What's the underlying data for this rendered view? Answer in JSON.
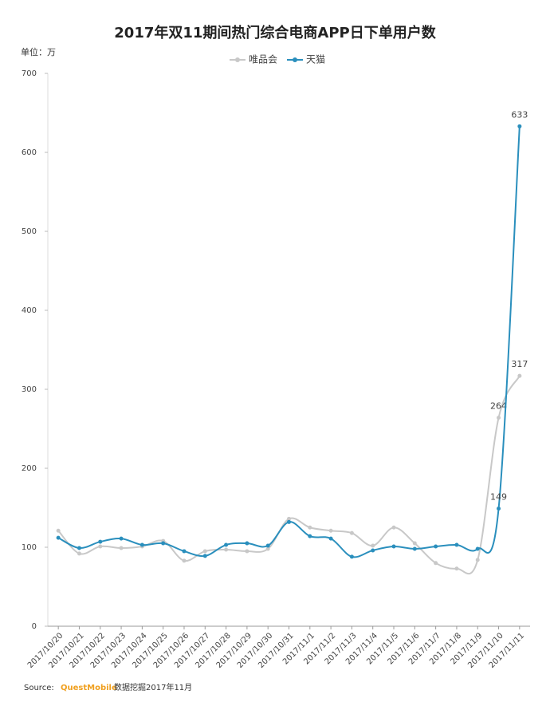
{
  "chart_data": {
    "type": "line",
    "title": "2017年双11期间热门综合电商APP日下单用户数",
    "y_unit": "单位：万",
    "categories": [
      "2017/10/20",
      "2017/10/21",
      "2017/10/22",
      "2017/10/23",
      "2017/10/24",
      "2017/10/25",
      "2017/10/26",
      "2017/10/27",
      "2017/10/28",
      "2017/10/29",
      "2017/10/30",
      "2017/10/31",
      "2017/11/1",
      "2017/11/2",
      "2017/11/3",
      "2017/11/4",
      "2017/11/5",
      "2017/11/6",
      "2017/11/7",
      "2017/11/8",
      "2017/11/9",
      "2017/11/10",
      "2017/11/11"
    ],
    "series": [
      {
        "name": "唯品会",
        "color": "#c8c8c8",
        "values": [
          121,
          92,
          101,
          99,
          101,
          108,
          83,
          95,
          97,
          95,
          98,
          136,
          125,
          121,
          118,
          102,
          125,
          105,
          80,
          73,
          84,
          264,
          317
        ],
        "data_labels": [
          21,
          22
        ]
      },
      {
        "name": "天猫",
        "color": "#2a8fbd",
        "values": [
          112,
          99,
          107,
          111,
          103,
          105,
          95,
          89,
          103,
          105,
          102,
          132,
          114,
          111,
          88,
          96,
          101,
          98,
          101,
          103,
          98,
          149,
          633
        ],
        "data_labels": [
          21,
          22
        ]
      }
    ],
    "ylim": [
      0,
      700
    ],
    "yticks": [
      0,
      100,
      200,
      300,
      400,
      500,
      600,
      700
    ],
    "grid": false,
    "legend": "top",
    "source": {
      "prefix": "Source:",
      "brand": "QuestMobile",
      "text": "数据挖掘2017年11月"
    }
  }
}
